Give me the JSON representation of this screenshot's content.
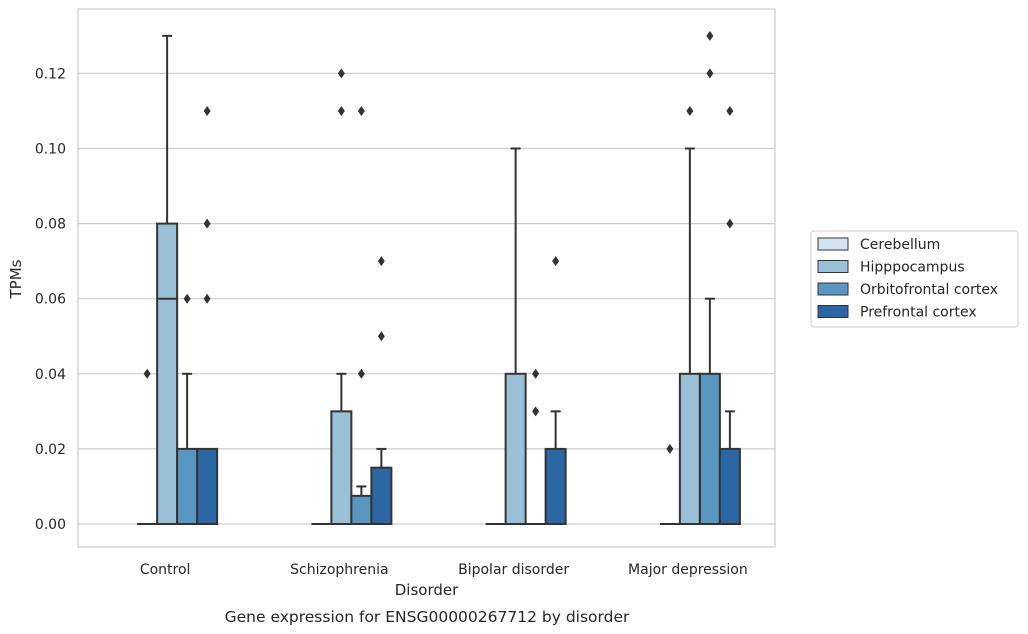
{
  "caption": "Gene expression for ENSG00000267712 by disorder",
  "chart_data": {
    "type": "box",
    "title": "",
    "xlabel": "Disorder",
    "ylabel": "TPMs",
    "ylim": [
      -0.0065,
      0.137
    ],
    "yticks": [
      "0.00",
      "0.02",
      "0.04",
      "0.06",
      "0.08",
      "0.10",
      "0.12"
    ],
    "grid": "horizontal",
    "legend_position": "right",
    "categories": [
      "Control",
      "Schizophrenia",
      "Bipolar disorder",
      "Major depression"
    ],
    "series": [
      {
        "name": "Cerebellum",
        "color": "#d5e3f0",
        "boxes": [
          {
            "q1": 0,
            "median": 0,
            "q3": 0,
            "whisker_low": 0,
            "whisker_high": 0,
            "outliers": [
              0.04
            ]
          },
          {
            "q1": 0,
            "median": 0,
            "q3": 0,
            "whisker_low": 0,
            "whisker_high": 0,
            "outliers": []
          },
          {
            "q1": 0,
            "median": 0,
            "q3": 0,
            "whisker_low": 0,
            "whisker_high": 0,
            "outliers": []
          },
          {
            "q1": 0,
            "median": 0,
            "q3": 0,
            "whisker_low": 0,
            "whisker_high": 0,
            "outliers": [
              0.02
            ]
          }
        ]
      },
      {
        "name": "Hipppocampus",
        "color": "#9ac1d8",
        "boxes": [
          {
            "q1": 0,
            "median": 0.06,
            "q3": 0.08,
            "whisker_low": 0,
            "whisker_high": 0.13,
            "outliers": []
          },
          {
            "q1": 0,
            "median": 0,
            "q3": 0.03,
            "whisker_low": 0,
            "whisker_high": 0.04,
            "outliers": [
              0.11,
              0.12
            ]
          },
          {
            "q1": 0,
            "median": 0,
            "q3": 0.04,
            "whisker_low": 0,
            "whisker_high": 0.1,
            "outliers": []
          },
          {
            "q1": 0,
            "median": 0,
            "q3": 0.04,
            "whisker_low": 0,
            "whisker_high": 0.1,
            "outliers": [
              0.11
            ]
          }
        ]
      },
      {
        "name": "Orbitofrontal cortex",
        "color": "#5a96c2",
        "boxes": [
          {
            "q1": 0,
            "median": 0,
            "q3": 0.02,
            "whisker_low": 0,
            "whisker_high": 0.04,
            "outliers": [
              0.06
            ]
          },
          {
            "q1": 0,
            "median": 0,
            "q3": 0.0075,
            "whisker_low": 0,
            "whisker_high": 0.01,
            "outliers": [
              0.04,
              0.11
            ]
          },
          {
            "q1": 0,
            "median": 0,
            "q3": 0,
            "whisker_low": 0,
            "whisker_high": 0,
            "outliers": [
              0.03,
              0.04
            ]
          },
          {
            "q1": 0,
            "median": 0,
            "q3": 0.04,
            "whisker_low": 0,
            "whisker_high": 0.06,
            "outliers": [
              0.12,
              0.13
            ]
          }
        ]
      },
      {
        "name": "Prefrontal cortex",
        "color": "#2a67a4",
        "boxes": [
          {
            "q1": 0,
            "median": 0,
            "q3": 0.02,
            "whisker_low": 0,
            "whisker_high": 0.02,
            "outliers": [
              0.06,
              0.08,
              0.11
            ]
          },
          {
            "q1": 0,
            "median": 0,
            "q3": 0.015,
            "whisker_low": 0,
            "whisker_high": 0.02,
            "outliers": [
              0.05,
              0.07
            ]
          },
          {
            "q1": 0,
            "median": 0,
            "q3": 0.02,
            "whisker_low": 0,
            "whisker_high": 0.03,
            "outliers": [
              0.07
            ]
          },
          {
            "q1": 0,
            "median": 0,
            "q3": 0.02,
            "whisker_low": 0,
            "whisker_high": 0.03,
            "outliers": [
              0.08,
              0.11
            ]
          }
        ]
      }
    ]
  }
}
